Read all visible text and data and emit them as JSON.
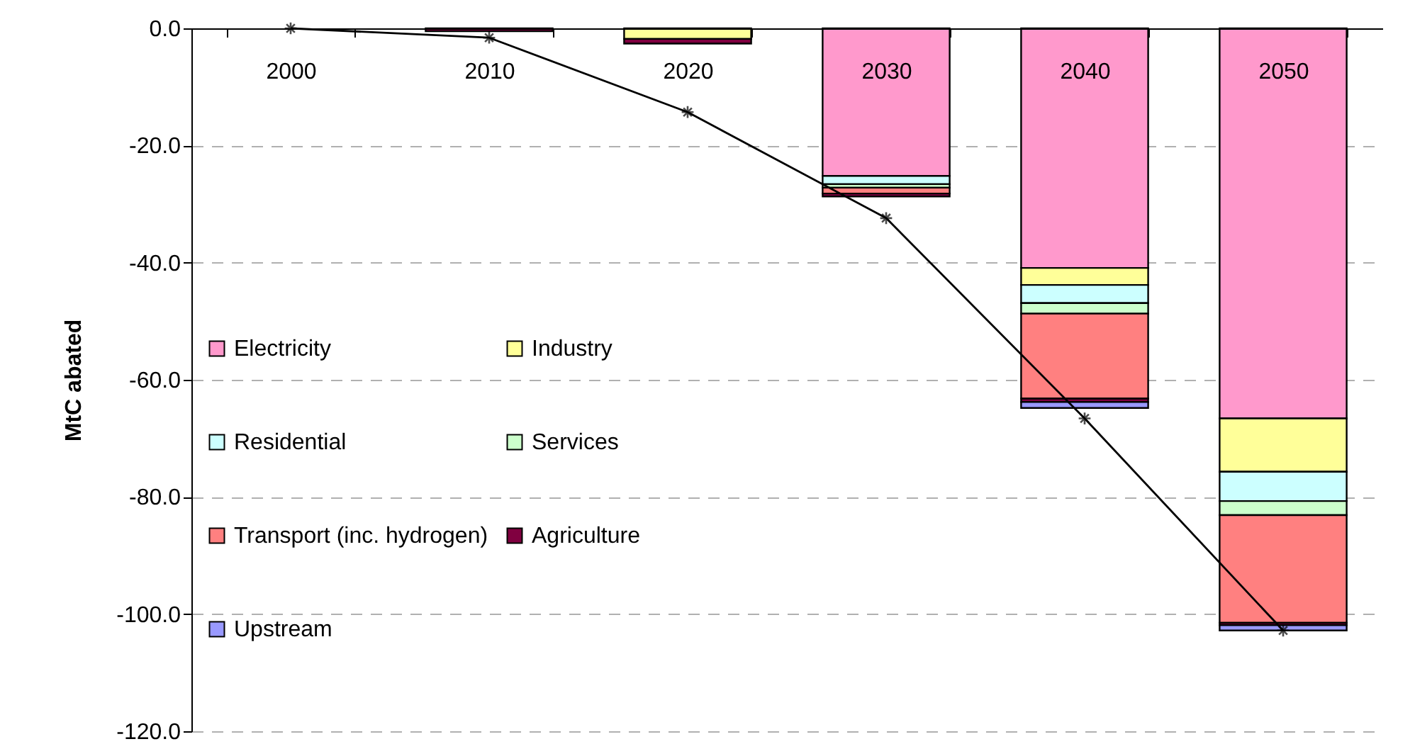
{
  "chart_data": {
    "type": "bar",
    "stacked": true,
    "ylabel": "MtC abated",
    "categories": [
      "2000",
      "2010",
      "2020",
      "2030",
      "2040",
      "2050"
    ],
    "series": [
      {
        "name": "Electricity",
        "color": "#ff99cc",
        "values": [
          null,
          null,
          null,
          -25.2,
          -40.9,
          -66.6
        ]
      },
      {
        "name": "Industry",
        "color": "#ffff99",
        "values": [
          null,
          null,
          -1.8,
          null,
          -2.9,
          -9.1
        ]
      },
      {
        "name": "Residential",
        "color": "#ccffff",
        "values": [
          null,
          null,
          null,
          -1.4,
          -3.1,
          -5.0
        ]
      },
      {
        "name": "Services",
        "color": "#ccffcc",
        "values": [
          null,
          null,
          null,
          -0.6,
          -1.8,
          -2.4
        ]
      },
      {
        "name": "Transport (inc. hydrogen)",
        "color": "#ff8080",
        "values": [
          null,
          null,
          null,
          -1.0,
          -14.5,
          -18.4
        ]
      },
      {
        "name": "Agriculture",
        "color": "#800040",
        "values": [
          null,
          -0.5,
          -0.8,
          -0.5,
          -0.6,
          -0.4
        ]
      },
      {
        "name": "Upstream",
        "color": "#9999ff",
        "values": [
          null,
          null,
          null,
          null,
          -1.0,
          -0.9
        ]
      },
      {
        "type": "line",
        "color": "#000000",
        "marker": "cross",
        "values": [
          0,
          -1.6,
          -14.3,
          -32.4,
          -66.6,
          -102.8
        ]
      }
    ],
    "ylim": [
      -120,
      0
    ],
    "yticks": [
      {
        "value": -120,
        "label": "-120.0"
      },
      {
        "value": -100,
        "label": "-100.0"
      },
      {
        "value": -80,
        "label": "-80.0"
      },
      {
        "value": -60,
        "label": "-60.0"
      },
      {
        "value": -40,
        "label": "-40.0"
      },
      {
        "value": -20,
        "label": "-20.0"
      },
      {
        "value": 0,
        "label": "0.0"
      }
    ],
    "grid": "y",
    "legend": "left"
  }
}
